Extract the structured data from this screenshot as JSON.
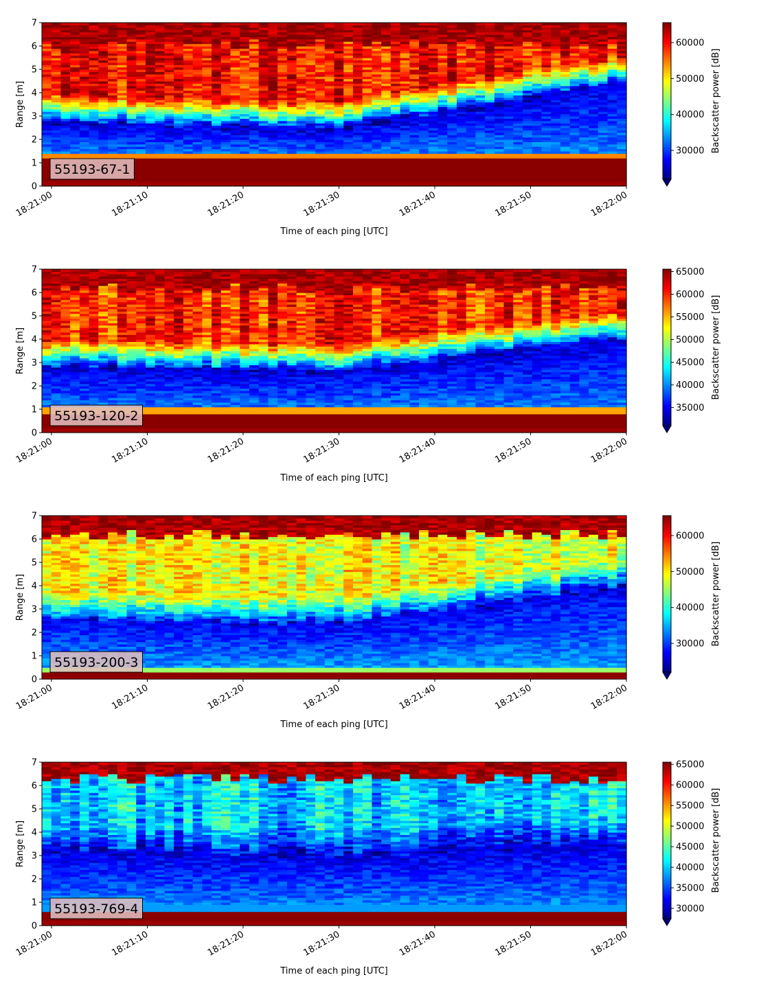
{
  "chart_data": [
    {
      "type": "heatmap",
      "label": "55193-67-1",
      "xlabel": "Time of each ping [UTC]",
      "ylabel": "Range [m]",
      "x_ticks": [
        "18:21:00",
        "18:21:10",
        "18:21:20",
        "18:21:30",
        "18:21:40",
        "18:21:50",
        "18:22:00"
      ],
      "y_ticks": [
        "0",
        "1",
        "2",
        "3",
        "4",
        "5",
        "6",
        "7"
      ],
      "xlim": [
        "18:20:59",
        "18:22:00"
      ],
      "ylim": [
        0,
        7
      ],
      "colorbar": {
        "label": "Backscatter power [dB]",
        "ticks": [
          30000,
          40000,
          50000,
          60000
        ],
        "range": [
          22000,
          65535
        ],
        "extend": "min",
        "colormap": "jet"
      },
      "profile": {
        "transducer_bottom_m": 0.25,
        "band_top_m": 1.2,
        "boundary_start_m": 2.75,
        "boundary_mid_m": 2.4,
        "boundary_end_m": 4.4,
        "surface_top_m": 6.1,
        "low_value": 26000,
        "high_value": 60000
      }
    },
    {
      "type": "heatmap",
      "label": "55193-120-2",
      "xlabel": "Time of each ping [UTC]",
      "ylabel": "Range [m]",
      "x_ticks": [
        "18:21:00",
        "18:21:10",
        "18:21:20",
        "18:21:30",
        "18:21:40",
        "18:21:50",
        "18:22:00"
      ],
      "y_ticks": [
        "0",
        "1",
        "2",
        "3",
        "4",
        "5",
        "6",
        "7"
      ],
      "xlim": [
        "18:20:59",
        "18:22:00"
      ],
      "ylim": [
        0,
        7
      ],
      "colorbar": {
        "label": "Backscatter power [dB]",
        "ticks": [
          35000,
          40000,
          45000,
          50000,
          55000,
          60000,
          65000
        ],
        "range": [
          31000,
          65535
        ],
        "extend": "min",
        "colormap": "jet"
      },
      "profile": {
        "transducer_bottom_m": 0.25,
        "band_top_m": 0.85,
        "boundary_start_m": 2.8,
        "boundary_mid_m": 2.6,
        "boundary_end_m": 4.0,
        "surface_top_m": 6.2,
        "low_value": 34000,
        "high_value": 60000
      }
    },
    {
      "type": "heatmap",
      "label": "55193-200-3",
      "xlabel": "Time of each ping [UTC]",
      "ylabel": "Range [m]",
      "x_ticks": [
        "18:21:00",
        "18:21:10",
        "18:21:20",
        "18:21:30",
        "18:21:40",
        "18:21:50",
        "18:22:00"
      ],
      "y_ticks": [
        "0",
        "1",
        "2",
        "3",
        "4",
        "5",
        "6",
        "7"
      ],
      "xlim": [
        "18:20:59",
        "18:22:00"
      ],
      "ylim": [
        0,
        7
      ],
      "colorbar": {
        "label": "Backscatter power [dB]",
        "ticks": [
          30000,
          40000,
          50000,
          60000
        ],
        "range": [
          22000,
          65535
        ],
        "extend": "min",
        "colormap": "jet"
      },
      "profile": {
        "transducer_bottom_m": 0.1,
        "band_top_m": 0.3,
        "boundary_start_m": 2.5,
        "boundary_mid_m": 2.3,
        "boundary_end_m": 3.9,
        "surface_top_m": 6.2,
        "low_value": 27000,
        "high_value": 49000
      }
    },
    {
      "type": "heatmap",
      "label": "55193-769-4",
      "xlabel": "Time of each ping [UTC]",
      "ylabel": "Range [m]",
      "x_ticks": [
        "18:21:00",
        "18:21:10",
        "18:21:20",
        "18:21:30",
        "18:21:40",
        "18:21:50",
        "18:22:00"
      ],
      "y_ticks": [
        "0",
        "1",
        "2",
        "3",
        "4",
        "5",
        "6",
        "7"
      ],
      "xlim": [
        "18:20:59",
        "18:22:00"
      ],
      "ylim": [
        0,
        7
      ],
      "colorbar": {
        "label": "Backscatter power [dB]",
        "ticks": [
          30000,
          35000,
          40000,
          45000,
          50000,
          55000,
          60000,
          65000
        ],
        "range": [
          27500,
          65535
        ],
        "extend": "min",
        "colormap": "jet"
      },
      "profile": {
        "transducer_bottom_m": 0.25,
        "band_top_m": 0.65,
        "boundary_start_m": 3.2,
        "boundary_mid_m": 3.0,
        "boundary_end_m": 3.6,
        "surface_top_m": 6.3,
        "low_value": 31000,
        "high_value": 40000
      }
    }
  ]
}
